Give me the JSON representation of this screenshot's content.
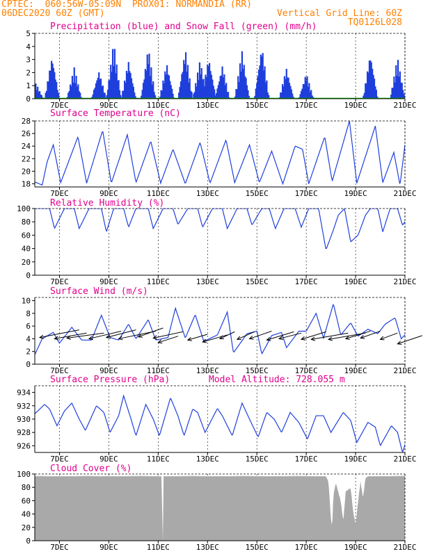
{
  "header": {
    "line1": "CPTEC:  060:56W-05:09N  PROX01: NORMANDIA (RR)",
    "line2": "06DEC2020 60Z (GMT)",
    "right1": "Vertical Grid Line: 60Z",
    "right2": "TQ0126L028"
  },
  "colors": {
    "header": "#ff8000",
    "title": "#e0008c",
    "line": "#1f3fdc",
    "snow": "#00b000",
    "cloud": "#a9a9a9"
  },
  "chart_data": [
    {
      "type": "bar",
      "title": "Precipitation (blue) and Snow Fall (green) (mm/h)",
      "ylim": [
        0,
        5
      ],
      "yticks": [
        0,
        1,
        2,
        3,
        4,
        5
      ],
      "xlim": [
        0,
        15
      ],
      "xticks": [
        {
          "x": 1,
          "label": "7DEC"
        },
        {
          "x": 3,
          "label": "9DEC"
        },
        {
          "x": 5,
          "label": "11DEC"
        },
        {
          "x": 7,
          "label": "13DEC"
        },
        {
          "x": 9,
          "label": "15DEC"
        },
        {
          "x": 11,
          "label": "17DEC"
        },
        {
          "x": 13,
          "label": "19DEC"
        },
        {
          "x": 15,
          "label": "21DEC"
        }
      ],
      "series": [
        {
          "name": "Precipitation",
          "color": "#1f3fdc",
          "peaks": [
            [
              0.05,
              1.2
            ],
            [
              0.7,
              3.4
            ],
            [
              1.6,
              2.4
            ],
            [
              2.6,
              2.2
            ],
            [
              3.2,
              4.4
            ],
            [
              3.8,
              3.0
            ],
            [
              4.6,
              4.0
            ],
            [
              5.35,
              2.8
            ],
            [
              6.1,
              3.9
            ],
            [
              6.7,
              3.0
            ],
            [
              7.05,
              3.3
            ],
            [
              7.6,
              2.6
            ],
            [
              8.4,
              3.7
            ],
            [
              9.2,
              4.2
            ],
            [
              10.2,
              2.4
            ],
            [
              11.0,
              2.0
            ],
            [
              13.6,
              3.6
            ],
            [
              14.7,
              3.2
            ]
          ]
        },
        {
          "name": "Snow Fall",
          "color": "#00b000",
          "value": 0
        }
      ]
    },
    {
      "type": "line",
      "title": "Surface Temperature (nC)",
      "ylim": [
        17.5,
        28
      ],
      "yticks": [
        18,
        20,
        22,
        24,
        26,
        28
      ],
      "xlim": [
        0,
        15
      ],
      "points": [
        [
          0,
          18.3
        ],
        [
          0.3,
          17.8
        ],
        [
          0.5,
          21.5
        ],
        [
          0.75,
          24.2
        ],
        [
          1.05,
          18.2
        ],
        [
          1.75,
          25.5
        ],
        [
          2.1,
          18.1
        ],
        [
          2.75,
          26.5
        ],
        [
          3.1,
          18.1
        ],
        [
          3.75,
          25.8
        ],
        [
          4.1,
          18.2
        ],
        [
          4.7,
          24.8
        ],
        [
          5.1,
          18.1
        ],
        [
          5.6,
          23.5
        ],
        [
          6.1,
          18.0
        ],
        [
          6.7,
          24.6
        ],
        [
          7.1,
          18.1
        ],
        [
          7.75,
          25.0
        ],
        [
          8.1,
          18.2
        ],
        [
          8.7,
          24.2
        ],
        [
          9.1,
          18.2
        ],
        [
          9.6,
          23.2
        ],
        [
          10.05,
          18.0
        ],
        [
          10.55,
          24.0
        ],
        [
          10.85,
          23.5
        ],
        [
          11.1,
          18.0
        ],
        [
          11.75,
          25.5
        ],
        [
          12.05,
          18.4
        ],
        [
          12.75,
          28.0
        ],
        [
          13.05,
          18.1
        ],
        [
          13.8,
          27.2
        ],
        [
          14.1,
          18.2
        ],
        [
          14.55,
          23.0
        ],
        [
          14.8,
          17.8
        ],
        [
          15.0,
          24.2
        ],
        [
          15.3,
          20.5
        ]
      ]
    },
    {
      "type": "line",
      "title": "Relative Humidity (%)",
      "ylim": [
        0,
        100
      ],
      "yticks": [
        0,
        20,
        40,
        60,
        80,
        100
      ],
      "xlim": [
        0,
        15
      ],
      "points": [
        [
          0,
          100
        ],
        [
          0.6,
          100
        ],
        [
          0.8,
          70
        ],
        [
          1.2,
          100
        ],
        [
          1.6,
          100
        ],
        [
          1.8,
          70
        ],
        [
          2.2,
          100
        ],
        [
          2.7,
          100
        ],
        [
          2.9,
          65
        ],
        [
          3.2,
          100
        ],
        [
          3.6,
          100
        ],
        [
          3.8,
          72
        ],
        [
          4.1,
          100
        ],
        [
          4.6,
          100
        ],
        [
          4.8,
          70
        ],
        [
          5.2,
          100
        ],
        [
          5.6,
          100
        ],
        [
          5.8,
          76
        ],
        [
          6.2,
          100
        ],
        [
          6.6,
          100
        ],
        [
          6.8,
          72
        ],
        [
          7.2,
          100
        ],
        [
          7.6,
          100
        ],
        [
          7.8,
          70
        ],
        [
          8.2,
          100
        ],
        [
          8.6,
          100
        ],
        [
          8.8,
          75
        ],
        [
          9.2,
          100
        ],
        [
          9.5,
          100
        ],
        [
          9.75,
          70
        ],
        [
          10.1,
          100
        ],
        [
          10.55,
          100
        ],
        [
          10.8,
          72
        ],
        [
          11.1,
          100
        ],
        [
          11.5,
          100
        ],
        [
          11.8,
          38
        ],
        [
          12.1,
          68
        ],
        [
          12.3,
          90
        ],
        [
          12.55,
          100
        ],
        [
          12.8,
          50
        ],
        [
          13.1,
          60
        ],
        [
          13.4,
          90
        ],
        [
          13.6,
          100
        ],
        [
          13.9,
          100
        ],
        [
          14.1,
          65
        ],
        [
          14.4,
          100
        ],
        [
          14.7,
          100
        ],
        [
          14.9,
          75
        ],
        [
          15.2,
          90
        ]
      ]
    },
    {
      "type": "line",
      "title": "Surface Wind (m/s)",
      "ylim": [
        0,
        10.5
      ],
      "yticks": [
        0,
        2,
        4,
        6,
        8,
        10
      ],
      "xlim": [
        0,
        15
      ],
      "points": [
        [
          0,
          1.5
        ],
        [
          0.3,
          4.0
        ],
        [
          0.75,
          5.0
        ],
        [
          1.0,
          3.3
        ],
        [
          1.5,
          5.8
        ],
        [
          1.9,
          3.8
        ],
        [
          2.3,
          3.8
        ],
        [
          2.7,
          7.7
        ],
        [
          3.05,
          4.2
        ],
        [
          3.4,
          3.8
        ],
        [
          3.8,
          6.3
        ],
        [
          4.1,
          4.0
        ],
        [
          4.6,
          7.0
        ],
        [
          4.9,
          3.8
        ],
        [
          5.4,
          4.2
        ],
        [
          5.7,
          8.8
        ],
        [
          6.1,
          4.1
        ],
        [
          6.5,
          7.8
        ],
        [
          6.85,
          3.6
        ],
        [
          7.4,
          4.6
        ],
        [
          7.8,
          8.2
        ],
        [
          8.05,
          1.8
        ],
        [
          8.6,
          4.8
        ],
        [
          9.0,
          5.2
        ],
        [
          9.2,
          1.6
        ],
        [
          9.6,
          4.5
        ],
        [
          10.0,
          5.0
        ],
        [
          10.2,
          2.6
        ],
        [
          10.7,
          5.2
        ],
        [
          11.0,
          5.2
        ],
        [
          11.4,
          8.0
        ],
        [
          11.7,
          4.1
        ],
        [
          12.1,
          9.5
        ],
        [
          12.4,
          4.6
        ],
        [
          12.8,
          6.5
        ],
        [
          13.1,
          4.4
        ],
        [
          13.5,
          5.5
        ],
        [
          13.9,
          4.8
        ],
        [
          14.2,
          6.3
        ],
        [
          14.6,
          7.3
        ],
        [
          14.85,
          4.0
        ],
        [
          15.3,
          5.8
        ]
      ],
      "arrows": [
        [
          0.2,
          4.2,
          1.6,
          1.2
        ],
        [
          0.8,
          4.0,
          1.3,
          0.9
        ],
        [
          1.3,
          4.1,
          1.5,
          0.8
        ],
        [
          2.2,
          4.0,
          1.3,
          1.2
        ],
        [
          2.9,
          4.2,
          1.2,
          1.2
        ],
        [
          3.4,
          4.0,
          1.5,
          1.2
        ],
        [
          4.2,
          4.3,
          1.0,
          1.4
        ],
        [
          4.8,
          4.1,
          1.2,
          1.0
        ],
        [
          5.0,
          3.4,
          0.8,
          1.0
        ],
        [
          6.2,
          3.8,
          0.8,
          0.9
        ],
        [
          6.8,
          3.5,
          1.0,
          1.1
        ],
        [
          7.5,
          4.0,
          0.6,
          1.1
        ],
        [
          8.2,
          3.9,
          0.7,
          1.2
        ],
        [
          8.7,
          4.0,
          0.9,
          1.2
        ],
        [
          9.4,
          3.8,
          1.1,
          1.3
        ],
        [
          9.9,
          4.0,
          0.9,
          0.9
        ],
        [
          10.8,
          3.9,
          1.0,
          1.2
        ],
        [
          11.2,
          3.9,
          1.5,
          1.0
        ],
        [
          11.9,
          3.9,
          1.5,
          1.0
        ],
        [
          12.6,
          4.0,
          1.0,
          1.2
        ],
        [
          13.2,
          4.1,
          0.8,
          1.1
        ],
        [
          14.0,
          3.9,
          0.7,
          1.0
        ],
        [
          14.7,
          3.2,
          1.0,
          1.3
        ]
      ]
    },
    {
      "type": "line",
      "title": "Surface Pressure (hPa)",
      "subtitle": "Model Altitude: 728.055 m",
      "ylim": [
        925,
        935
      ],
      "yticks": [
        926,
        928,
        930,
        932,
        934
      ],
      "xlim": [
        0,
        15
      ],
      "points": [
        [
          0,
          930.8
        ],
        [
          0.4,
          932.2
        ],
        [
          0.6,
          931.5
        ],
        [
          0.9,
          929.0
        ],
        [
          1.2,
          931.2
        ],
        [
          1.5,
          932.4
        ],
        [
          1.8,
          930.0
        ],
        [
          2.05,
          928.3
        ],
        [
          2.5,
          932.0
        ],
        [
          2.8,
          931.0
        ],
        [
          3.05,
          928.0
        ],
        [
          3.4,
          930.5
        ],
        [
          3.6,
          933.5
        ],
        [
          3.9,
          930.0
        ],
        [
          4.1,
          927.5
        ],
        [
          4.5,
          932.2
        ],
        [
          4.8,
          930.0
        ],
        [
          5.05,
          927.5
        ],
        [
          5.5,
          933.2
        ],
        [
          5.8,
          930.5
        ],
        [
          6.05,
          927.5
        ],
        [
          6.4,
          931.5
        ],
        [
          6.6,
          931.0
        ],
        [
          6.9,
          928.0
        ],
        [
          7.4,
          931.6
        ],
        [
          7.6,
          930.5
        ],
        [
          8.0,
          927.5
        ],
        [
          8.4,
          932.4
        ],
        [
          8.7,
          930.0
        ],
        [
          9.05,
          927.3
        ],
        [
          9.4,
          931.0
        ],
        [
          9.7,
          930.0
        ],
        [
          10.0,
          928.0
        ],
        [
          10.35,
          931.0
        ],
        [
          10.7,
          929.5
        ],
        [
          11.05,
          927.0
        ],
        [
          11.4,
          930.5
        ],
        [
          11.7,
          930.5
        ],
        [
          12.0,
          928.0
        ],
        [
          12.5,
          931.0
        ],
        [
          12.8,
          929.8
        ],
        [
          13.05,
          926.5
        ],
        [
          13.5,
          929.5
        ],
        [
          13.8,
          928.8
        ],
        [
          14.0,
          926.0
        ],
        [
          14.45,
          929.0
        ],
        [
          14.7,
          928.0
        ],
        [
          14.9,
          925.0
        ],
        [
          15.3,
          929.5
        ]
      ]
    },
    {
      "type": "area",
      "title": "Cloud Cover (%)",
      "ylim": [
        0,
        100
      ],
      "yticks": [
        0,
        20,
        40,
        60,
        80,
        100
      ],
      "xlim": [
        0,
        15
      ],
      "points": [
        [
          0,
          98
        ],
        [
          5.15,
          98
        ],
        [
          5.17,
          2
        ],
        [
          5.2,
          2
        ],
        [
          5.22,
          98
        ],
        [
          11.8,
          98
        ],
        [
          11.9,
          90
        ],
        [
          12.0,
          35
        ],
        [
          12.05,
          20
        ],
        [
          12.1,
          70
        ],
        [
          12.2,
          88
        ],
        [
          12.4,
          60
        ],
        [
          12.5,
          30
        ],
        [
          12.6,
          75
        ],
        [
          12.8,
          80
        ],
        [
          12.9,
          45
        ],
        [
          13.0,
          25
        ],
        [
          13.1,
          60
        ],
        [
          13.2,
          90
        ],
        [
          13.3,
          65
        ],
        [
          13.4,
          95
        ],
        [
          13.5,
          98
        ],
        [
          15.3,
          98
        ]
      ]
    }
  ]
}
